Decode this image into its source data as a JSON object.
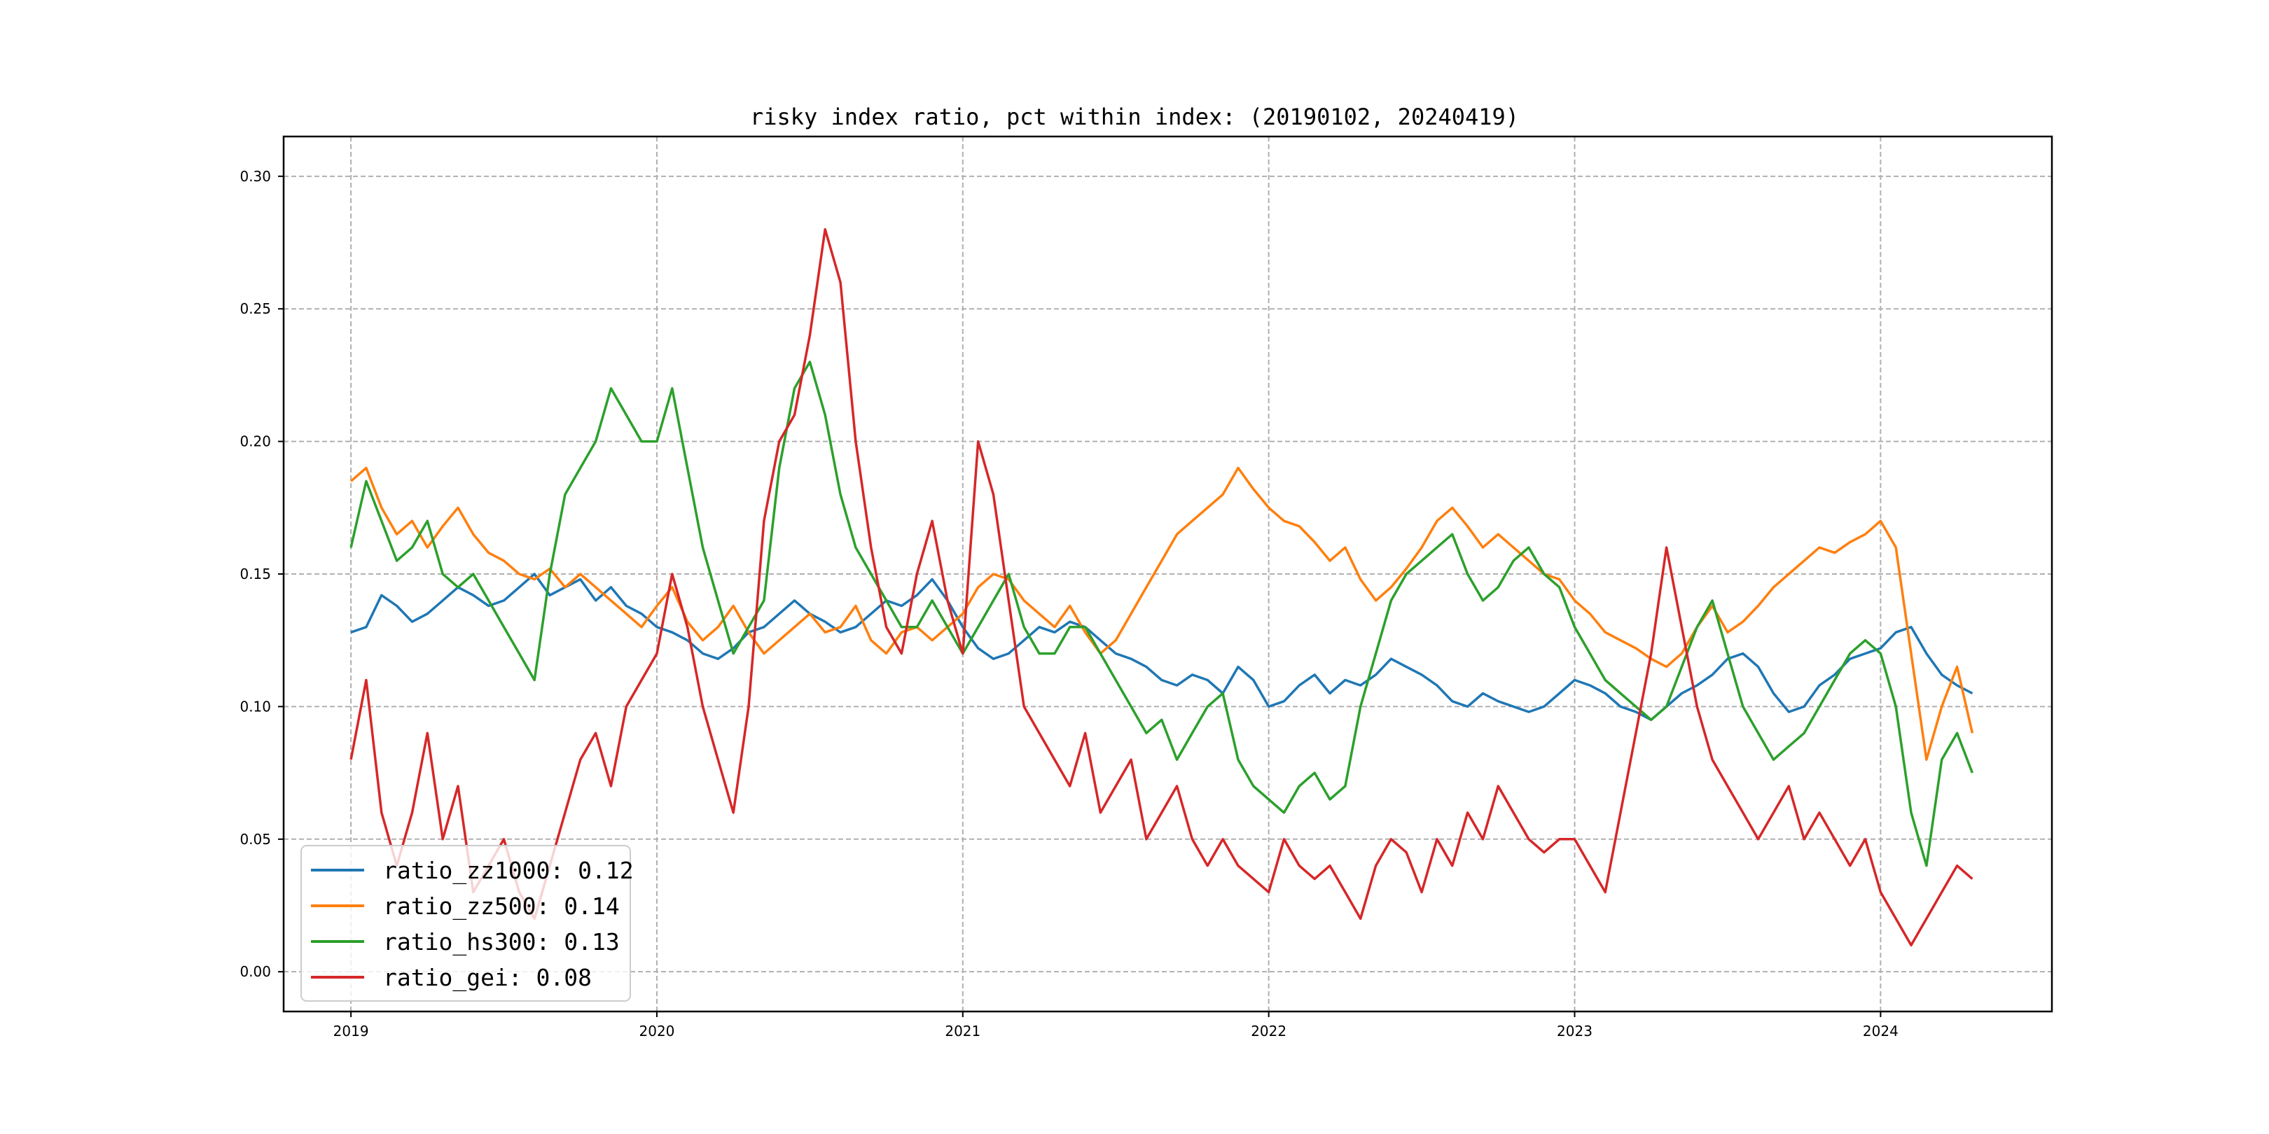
{
  "chart_data": {
    "type": "line",
    "title": "risky index ratio, pct within index: (20190102, 20240419)",
    "xlabel": "",
    "ylabel": "",
    "x_range": [
      2018.78,
      2024.56
    ],
    "ylim": [
      -0.015,
      0.315
    ],
    "x_ticks": [
      2019,
      2020,
      2021,
      2022,
      2023,
      2024
    ],
    "x_tick_labels": [
      "2019",
      "2020",
      "2021",
      "2022",
      "2023",
      "2024"
    ],
    "y_ticks": [
      0.0,
      0.05,
      0.1,
      0.15,
      0.2,
      0.25,
      0.3
    ],
    "y_tick_labels": [
      "0.00",
      "0.05",
      "0.10",
      "0.15",
      "0.20",
      "0.25",
      "0.30"
    ],
    "grid": true,
    "legend_position": "lower-left",
    "series": [
      {
        "name": "ratio_zz1000",
        "legend_label": "ratio_zz1000: 0.12",
        "color": "#1f77b4",
        "x": [
          2019.0,
          2019.05,
          2019.1,
          2019.15,
          2019.2,
          2019.25,
          2019.3,
          2019.35,
          2019.4,
          2019.45,
          2019.5,
          2019.55,
          2019.6,
          2019.65,
          2019.7,
          2019.75,
          2019.8,
          2019.85,
          2019.9,
          2019.95,
          2020.0,
          2020.05,
          2020.1,
          2020.15,
          2020.2,
          2020.25,
          2020.3,
          2020.35,
          2020.4,
          2020.45,
          2020.5,
          2020.55,
          2020.6,
          2020.65,
          2020.7,
          2020.75,
          2020.8,
          2020.85,
          2020.9,
          2020.95,
          2021.0,
          2021.05,
          2021.1,
          2021.15,
          2021.2,
          2021.25,
          2021.3,
          2021.35,
          2021.4,
          2021.45,
          2021.5,
          2021.55,
          2021.6,
          2021.65,
          2021.7,
          2021.75,
          2021.8,
          2021.85,
          2021.9,
          2021.95,
          2022.0,
          2022.05,
          2022.1,
          2022.15,
          2022.2,
          2022.25,
          2022.3,
          2022.35,
          2022.4,
          2022.45,
          2022.5,
          2022.55,
          2022.6,
          2022.65,
          2022.7,
          2022.75,
          2022.8,
          2022.85,
          2022.9,
          2022.95,
          2023.0,
          2023.05,
          2023.1,
          2023.15,
          2023.2,
          2023.25,
          2023.3,
          2023.35,
          2023.4,
          2023.45,
          2023.5,
          2023.55,
          2023.6,
          2023.65,
          2023.7,
          2023.75,
          2023.8,
          2023.85,
          2023.9,
          2023.95,
          2024.0,
          2024.05,
          2024.1,
          2024.15,
          2024.2,
          2024.25,
          2024.3
        ],
        "y": [
          0.128,
          0.13,
          0.142,
          0.138,
          0.132,
          0.135,
          0.14,
          0.145,
          0.142,
          0.138,
          0.14,
          0.145,
          0.15,
          0.142,
          0.145,
          0.148,
          0.14,
          0.145,
          0.138,
          0.135,
          0.13,
          0.128,
          0.125,
          0.12,
          0.118,
          0.122,
          0.128,
          0.13,
          0.135,
          0.14,
          0.135,
          0.132,
          0.128,
          0.13,
          0.135,
          0.14,
          0.138,
          0.142,
          0.148,
          0.14,
          0.13,
          0.122,
          0.118,
          0.12,
          0.125,
          0.13,
          0.128,
          0.132,
          0.13,
          0.125,
          0.12,
          0.118,
          0.115,
          0.11,
          0.108,
          0.112,
          0.11,
          0.105,
          0.115,
          0.11,
          0.1,
          0.102,
          0.108,
          0.112,
          0.105,
          0.11,
          0.108,
          0.112,
          0.118,
          0.115,
          0.112,
          0.108,
          0.102,
          0.1,
          0.105,
          0.102,
          0.1,
          0.098,
          0.1,
          0.105,
          0.11,
          0.108,
          0.105,
          0.1,
          0.098,
          0.095,
          0.1,
          0.105,
          0.108,
          0.112,
          0.118,
          0.12,
          0.115,
          0.105,
          0.098,
          0.1,
          0.108,
          0.112,
          0.118,
          0.12,
          0.122,
          0.128,
          0.13,
          0.12,
          0.112,
          0.108,
          0.105
        ]
      },
      {
        "name": "ratio_zz500",
        "legend_label": "ratio_zz500: 0.14",
        "color": "#ff7f0e",
        "x": [
          2019.0,
          2019.05,
          2019.1,
          2019.15,
          2019.2,
          2019.25,
          2019.3,
          2019.35,
          2019.4,
          2019.45,
          2019.5,
          2019.55,
          2019.6,
          2019.65,
          2019.7,
          2019.75,
          2019.8,
          2019.85,
          2019.9,
          2019.95,
          2020.0,
          2020.05,
          2020.1,
          2020.15,
          2020.2,
          2020.25,
          2020.3,
          2020.35,
          2020.4,
          2020.45,
          2020.5,
          2020.55,
          2020.6,
          2020.65,
          2020.7,
          2020.75,
          2020.8,
          2020.85,
          2020.9,
          2020.95,
          2021.0,
          2021.05,
          2021.1,
          2021.15,
          2021.2,
          2021.25,
          2021.3,
          2021.35,
          2021.4,
          2021.45,
          2021.5,
          2021.55,
          2021.6,
          2021.65,
          2021.7,
          2021.75,
          2021.8,
          2021.85,
          2021.9,
          2021.95,
          2022.0,
          2022.05,
          2022.1,
          2022.15,
          2022.2,
          2022.25,
          2022.3,
          2022.35,
          2022.4,
          2022.45,
          2022.5,
          2022.55,
          2022.6,
          2022.65,
          2022.7,
          2022.75,
          2022.8,
          2022.85,
          2022.9,
          2022.95,
          2023.0,
          2023.05,
          2023.1,
          2023.15,
          2023.2,
          2023.25,
          2023.3,
          2023.35,
          2023.4,
          2023.45,
          2023.5,
          2023.55,
          2023.6,
          2023.65,
          2023.7,
          2023.75,
          2023.8,
          2023.85,
          2023.9,
          2023.95,
          2024.0,
          2024.05,
          2024.1,
          2024.15,
          2024.2,
          2024.25,
          2024.3
        ],
        "y": [
          0.185,
          0.19,
          0.175,
          0.165,
          0.17,
          0.16,
          0.168,
          0.175,
          0.165,
          0.158,
          0.155,
          0.15,
          0.148,
          0.152,
          0.145,
          0.15,
          0.145,
          0.14,
          0.135,
          0.13,
          0.138,
          0.145,
          0.132,
          0.125,
          0.13,
          0.138,
          0.128,
          0.12,
          0.125,
          0.13,
          0.135,
          0.128,
          0.13,
          0.138,
          0.125,
          0.12,
          0.128,
          0.13,
          0.125,
          0.13,
          0.135,
          0.145,
          0.15,
          0.148,
          0.14,
          0.135,
          0.13,
          0.138,
          0.128,
          0.12,
          0.125,
          0.135,
          0.145,
          0.155,
          0.165,
          0.17,
          0.175,
          0.18,
          0.19,
          0.182,
          0.175,
          0.17,
          0.168,
          0.162,
          0.155,
          0.16,
          0.148,
          0.14,
          0.145,
          0.152,
          0.16,
          0.17,
          0.175,
          0.168,
          0.16,
          0.165,
          0.16,
          0.155,
          0.15,
          0.148,
          0.14,
          0.135,
          0.128,
          0.125,
          0.122,
          0.118,
          0.115,
          0.12,
          0.13,
          0.138,
          0.128,
          0.132,
          0.138,
          0.145,
          0.15,
          0.155,
          0.16,
          0.158,
          0.162,
          0.165,
          0.17,
          0.16,
          0.12,
          0.08,
          0.1,
          0.115,
          0.09
        ]
      },
      {
        "name": "ratio_hs300",
        "legend_label": "ratio_hs300: 0.13",
        "color": "#2ca02c",
        "x": [
          2019.0,
          2019.05,
          2019.1,
          2019.15,
          2019.2,
          2019.25,
          2019.3,
          2019.35,
          2019.4,
          2019.45,
          2019.5,
          2019.55,
          2019.6,
          2019.65,
          2019.7,
          2019.75,
          2019.8,
          2019.85,
          2019.9,
          2019.95,
          2020.0,
          2020.05,
          2020.1,
          2020.15,
          2020.2,
          2020.25,
          2020.3,
          2020.35,
          2020.4,
          2020.45,
          2020.5,
          2020.55,
          2020.6,
          2020.65,
          2020.7,
          2020.75,
          2020.8,
          2020.85,
          2020.9,
          2020.95,
          2021.0,
          2021.05,
          2021.1,
          2021.15,
          2021.2,
          2021.25,
          2021.3,
          2021.35,
          2021.4,
          2021.45,
          2021.5,
          2021.55,
          2021.6,
          2021.65,
          2021.7,
          2021.75,
          2021.8,
          2021.85,
          2021.9,
          2021.95,
          2022.0,
          2022.05,
          2022.1,
          2022.15,
          2022.2,
          2022.25,
          2022.3,
          2022.35,
          2022.4,
          2022.45,
          2022.5,
          2022.55,
          2022.6,
          2022.65,
          2022.7,
          2022.75,
          2022.8,
          2022.85,
          2022.9,
          2022.95,
          2023.0,
          2023.05,
          2023.1,
          2023.15,
          2023.2,
          2023.25,
          2023.3,
          2023.35,
          2023.4,
          2023.45,
          2023.5,
          2023.55,
          2023.6,
          2023.65,
          2023.7,
          2023.75,
          2023.8,
          2023.85,
          2023.9,
          2023.95,
          2024.0,
          2024.05,
          2024.1,
          2024.15,
          2024.2,
          2024.25,
          2024.3
        ],
        "y": [
          0.16,
          0.185,
          0.17,
          0.155,
          0.16,
          0.17,
          0.15,
          0.145,
          0.15,
          0.14,
          0.13,
          0.12,
          0.11,
          0.15,
          0.18,
          0.19,
          0.2,
          0.22,
          0.21,
          0.2,
          0.2,
          0.22,
          0.19,
          0.16,
          0.14,
          0.12,
          0.13,
          0.14,
          0.19,
          0.22,
          0.23,
          0.21,
          0.18,
          0.16,
          0.15,
          0.14,
          0.13,
          0.13,
          0.14,
          0.13,
          0.12,
          0.13,
          0.14,
          0.15,
          0.13,
          0.12,
          0.12,
          0.13,
          0.13,
          0.12,
          0.11,
          0.1,
          0.09,
          0.095,
          0.08,
          0.09,
          0.1,
          0.105,
          0.08,
          0.07,
          0.065,
          0.06,
          0.07,
          0.075,
          0.065,
          0.07,
          0.1,
          0.12,
          0.14,
          0.15,
          0.155,
          0.16,
          0.165,
          0.15,
          0.14,
          0.145,
          0.155,
          0.16,
          0.15,
          0.145,
          0.13,
          0.12,
          0.11,
          0.105,
          0.1,
          0.095,
          0.1,
          0.115,
          0.13,
          0.14,
          0.12,
          0.1,
          0.09,
          0.08,
          0.085,
          0.09,
          0.1,
          0.11,
          0.12,
          0.125,
          0.12,
          0.1,
          0.06,
          0.04,
          0.08,
          0.09,
          0.075
        ]
      },
      {
        "name": "ratio_gei",
        "legend_label": "ratio_gei: 0.08",
        "color": "#d62728",
        "x": [
          2019.0,
          2019.05,
          2019.1,
          2019.15,
          2019.2,
          2019.25,
          2019.3,
          2019.35,
          2019.4,
          2019.45,
          2019.5,
          2019.55,
          2019.6,
          2019.65,
          2019.7,
          2019.75,
          2019.8,
          2019.85,
          2019.9,
          2019.95,
          2020.0,
          2020.05,
          2020.1,
          2020.15,
          2020.2,
          2020.25,
          2020.3,
          2020.35,
          2020.4,
          2020.45,
          2020.5,
          2020.55,
          2020.6,
          2020.65,
          2020.7,
          2020.75,
          2020.8,
          2020.85,
          2020.9,
          2020.95,
          2021.0,
          2021.05,
          2021.1,
          2021.15,
          2021.2,
          2021.25,
          2021.3,
          2021.35,
          2021.4,
          2021.45,
          2021.5,
          2021.55,
          2021.6,
          2021.65,
          2021.7,
          2021.75,
          2021.8,
          2021.85,
          2021.9,
          2021.95,
          2022.0,
          2022.05,
          2022.1,
          2022.15,
          2022.2,
          2022.25,
          2022.3,
          2022.35,
          2022.4,
          2022.45,
          2022.5,
          2022.55,
          2022.6,
          2022.65,
          2022.7,
          2022.75,
          2022.8,
          2022.85,
          2022.9,
          2022.95,
          2023.0,
          2023.05,
          2023.1,
          2023.15,
          2023.2,
          2023.25,
          2023.3,
          2023.35,
          2023.4,
          2023.45,
          2023.5,
          2023.55,
          2023.6,
          2023.65,
          2023.7,
          2023.75,
          2023.8,
          2023.85,
          2023.9,
          2023.95,
          2024.0,
          2024.05,
          2024.1,
          2024.15,
          2024.2,
          2024.25,
          2024.3
        ],
        "y": [
          0.08,
          0.11,
          0.06,
          0.04,
          0.06,
          0.09,
          0.05,
          0.07,
          0.03,
          0.04,
          0.05,
          0.03,
          0.02,
          0.04,
          0.06,
          0.08,
          0.09,
          0.07,
          0.1,
          0.11,
          0.12,
          0.15,
          0.13,
          0.1,
          0.08,
          0.06,
          0.1,
          0.17,
          0.2,
          0.21,
          0.24,
          0.28,
          0.26,
          0.2,
          0.16,
          0.13,
          0.12,
          0.15,
          0.17,
          0.14,
          0.12,
          0.2,
          0.18,
          0.14,
          0.1,
          0.09,
          0.08,
          0.07,
          0.09,
          0.06,
          0.07,
          0.08,
          0.05,
          0.06,
          0.07,
          0.05,
          0.04,
          0.05,
          0.04,
          0.035,
          0.03,
          0.05,
          0.04,
          0.035,
          0.04,
          0.03,
          0.02,
          0.04,
          0.05,
          0.045,
          0.03,
          0.05,
          0.04,
          0.06,
          0.05,
          0.07,
          0.06,
          0.05,
          0.045,
          0.05,
          0.05,
          0.04,
          0.03,
          0.06,
          0.09,
          0.12,
          0.16,
          0.13,
          0.1,
          0.08,
          0.07,
          0.06,
          0.05,
          0.06,
          0.07,
          0.05,
          0.06,
          0.05,
          0.04,
          0.05,
          0.03,
          0.02,
          0.01,
          0.02,
          0.03,
          0.04,
          0.035
        ]
      }
    ]
  }
}
